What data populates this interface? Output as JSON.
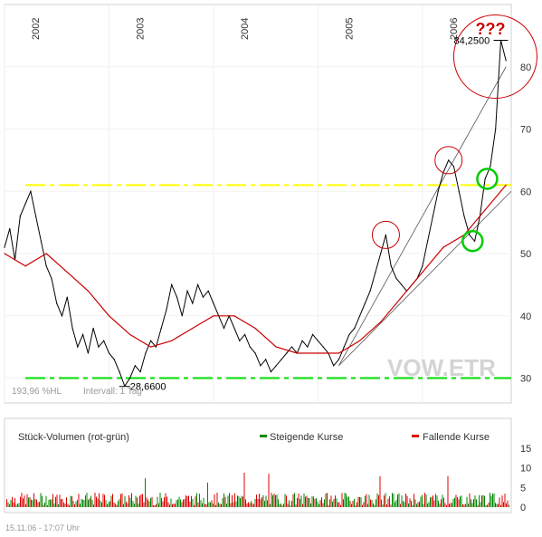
{
  "chart_data": {
    "type": "line",
    "ticker": "VOW.ETR",
    "footer_left": "193,96 %HL",
    "footer_interval": "Intervall: 1 Tag",
    "year_labels": [
      "2002",
      "2003",
      "2004",
      "2005",
      "2006"
    ],
    "y_ticks": [
      30,
      40,
      50,
      60,
      70,
      80
    ],
    "ylim": [
      26,
      90
    ],
    "xlim": [
      2002.0,
      2006.85
    ],
    "max_label": "84,2500",
    "max_point": {
      "x": 2006.75,
      "y": 84.25
    },
    "min_label": "28,6600",
    "min_point": {
      "x": 2003.15,
      "y": 28.66
    },
    "question_annotation": "???",
    "series": [
      {
        "values": [
          [
            2002.0,
            51
          ],
          [
            2002.05,
            54
          ],
          [
            2002.1,
            49
          ],
          [
            2002.15,
            56
          ],
          [
            2002.2,
            58
          ],
          [
            2002.25,
            60
          ],
          [
            2002.3,
            56
          ],
          [
            2002.35,
            52
          ],
          [
            2002.4,
            48
          ],
          [
            2002.45,
            46
          ],
          [
            2002.5,
            42
          ],
          [
            2002.55,
            40
          ],
          [
            2002.6,
            43
          ],
          [
            2002.65,
            38
          ],
          [
            2002.7,
            35
          ],
          [
            2002.75,
            37
          ],
          [
            2002.8,
            34
          ],
          [
            2002.85,
            38
          ],
          [
            2002.9,
            35
          ],
          [
            2002.95,
            36
          ],
          [
            2003.0,
            34
          ],
          [
            2003.05,
            33
          ],
          [
            2003.1,
            31
          ],
          [
            2003.15,
            28.7
          ],
          [
            2003.2,
            30
          ],
          [
            2003.25,
            32
          ],
          [
            2003.3,
            31
          ],
          [
            2003.35,
            34
          ],
          [
            2003.4,
            36
          ],
          [
            2003.45,
            35
          ],
          [
            2003.5,
            38
          ],
          [
            2003.55,
            41
          ],
          [
            2003.6,
            45
          ],
          [
            2003.65,
            43
          ],
          [
            2003.7,
            40
          ],
          [
            2003.75,
            44
          ],
          [
            2003.8,
            42
          ],
          [
            2003.85,
            45
          ],
          [
            2003.9,
            43
          ],
          [
            2003.95,
            44
          ],
          [
            2004.0,
            42
          ],
          [
            2004.05,
            40
          ],
          [
            2004.1,
            38
          ],
          [
            2004.15,
            40
          ],
          [
            2004.2,
            38
          ],
          [
            2004.25,
            36
          ],
          [
            2004.3,
            37
          ],
          [
            2004.35,
            35
          ],
          [
            2004.4,
            34
          ],
          [
            2004.45,
            32
          ],
          [
            2004.5,
            33
          ],
          [
            2004.55,
            31
          ],
          [
            2004.6,
            32
          ],
          [
            2004.65,
            33
          ],
          [
            2004.7,
            34
          ],
          [
            2004.75,
            35
          ],
          [
            2004.8,
            34
          ],
          [
            2004.85,
            36
          ],
          [
            2004.9,
            35
          ],
          [
            2004.95,
            37
          ],
          [
            2005.0,
            36
          ],
          [
            2005.05,
            35
          ],
          [
            2005.1,
            34
          ],
          [
            2005.15,
            32
          ],
          [
            2005.2,
            33
          ],
          [
            2005.25,
            35
          ],
          [
            2005.3,
            37
          ],
          [
            2005.35,
            38
          ],
          [
            2005.4,
            40
          ],
          [
            2005.45,
            42
          ],
          [
            2005.5,
            44
          ],
          [
            2005.55,
            47
          ],
          [
            2005.6,
            50
          ],
          [
            2005.65,
            53
          ],
          [
            2005.7,
            48
          ],
          [
            2005.75,
            46
          ],
          [
            2005.8,
            45
          ],
          [
            2005.85,
            44
          ],
          [
            2005.9,
            45
          ],
          [
            2005.95,
            46
          ],
          [
            2006.0,
            48
          ],
          [
            2006.05,
            52
          ],
          [
            2006.1,
            56
          ],
          [
            2006.15,
            60
          ],
          [
            2006.2,
            63
          ],
          [
            2006.25,
            65
          ],
          [
            2006.3,
            64
          ],
          [
            2006.35,
            60
          ],
          [
            2006.4,
            56
          ],
          [
            2006.45,
            53
          ],
          [
            2006.5,
            52
          ],
          [
            2006.55,
            56
          ],
          [
            2006.6,
            62
          ],
          [
            2006.65,
            64
          ],
          [
            2006.7,
            70
          ],
          [
            2006.75,
            84.25
          ],
          [
            2006.8,
            81
          ]
        ]
      },
      {
        "values": [
          [
            2002.0,
            50
          ],
          [
            2002.2,
            48
          ],
          [
            2002.4,
            50
          ],
          [
            2002.6,
            47
          ],
          [
            2002.8,
            44
          ],
          [
            2003.0,
            40
          ],
          [
            2003.2,
            37
          ],
          [
            2003.4,
            35
          ],
          [
            2003.6,
            36
          ],
          [
            2003.8,
            38
          ],
          [
            2004.0,
            40
          ],
          [
            2004.2,
            40
          ],
          [
            2004.4,
            38
          ],
          [
            2004.6,
            35
          ],
          [
            2004.8,
            34
          ],
          [
            2005.0,
            34
          ],
          [
            2005.2,
            34
          ],
          [
            2005.4,
            36
          ],
          [
            2005.6,
            39
          ],
          [
            2005.8,
            43
          ],
          [
            2006.0,
            47
          ],
          [
            2006.2,
            51
          ],
          [
            2006.4,
            53
          ],
          [
            2006.6,
            57
          ],
          [
            2006.8,
            61
          ]
        ]
      }
    ],
    "horizontal_levels": [
      {
        "value": 61.0,
        "color": "#ffff00"
      },
      {
        "value": 30.0,
        "color": "#00dd00"
      }
    ],
    "trend_channel": [
      {
        "from": [
          2005.2,
          32
        ],
        "to": [
          2006.8,
          80
        ]
      },
      {
        "from": [
          2005.2,
          32
        ],
        "to": [
          2006.85,
          60
        ]
      }
    ],
    "circles": [
      {
        "x": 2005.65,
        "y": 53,
        "color": "#cc0000"
      },
      {
        "x": 2006.25,
        "y": 65,
        "color": "#cc0000"
      },
      {
        "x": 2006.48,
        "y": 52,
        "color": "#00cc00"
      },
      {
        "x": 2006.62,
        "y": 62,
        "color": "#00cc00"
      }
    ],
    "volume": {
      "title": "Stück-Volumen (rot-grün)",
      "legend_up": "Steigende Kurse",
      "legend_down": "Fallende Kurse",
      "up_color": "#008800",
      "down_color": "#dd0000",
      "y_ticks": [
        "15",
        "10",
        "5",
        "0"
      ]
    },
    "time_footer": "15.11.06 - 17:07 Uhr"
  }
}
